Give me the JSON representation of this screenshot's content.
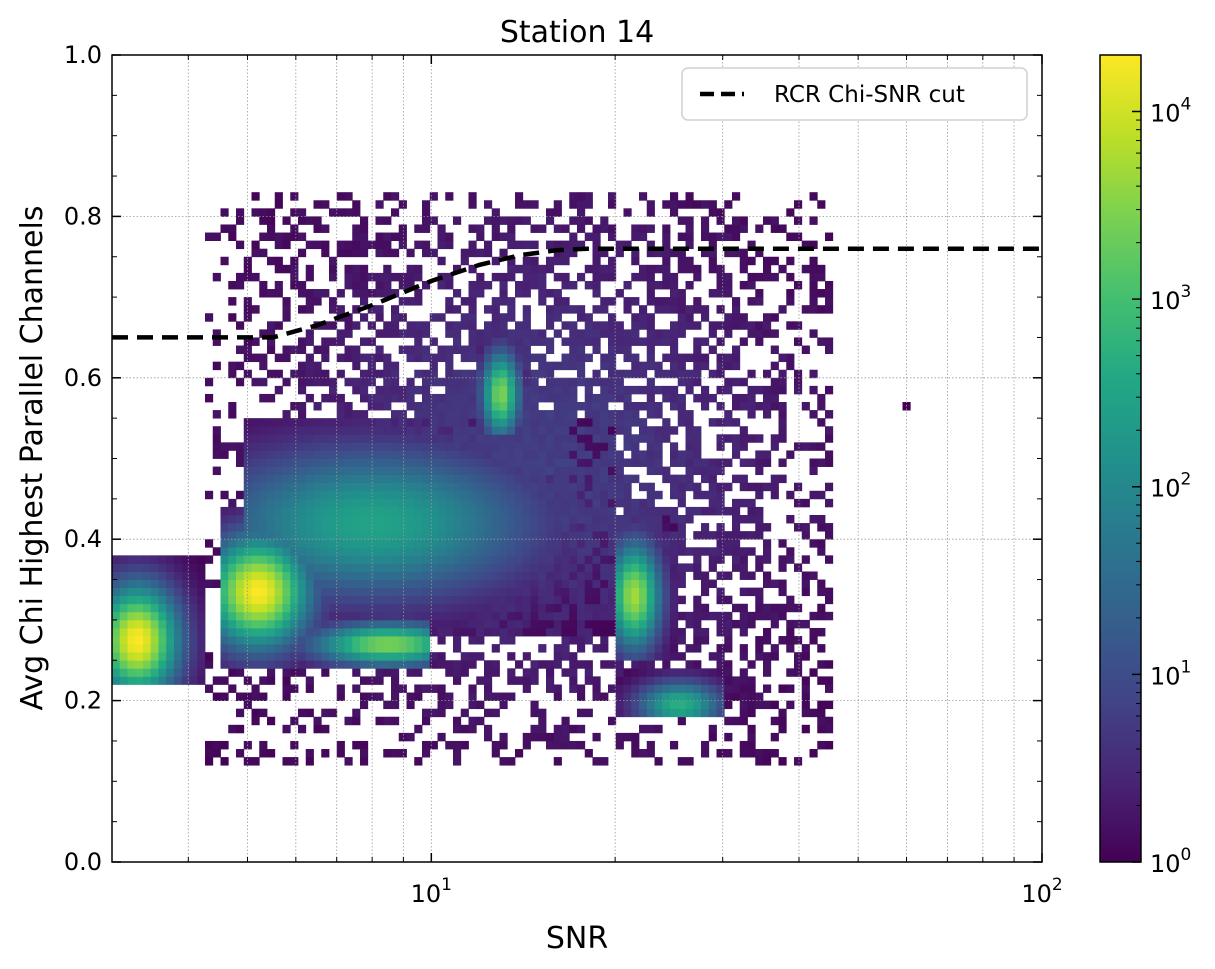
{
  "chart_data": {
    "type": "heatmap",
    "title": "Station 14",
    "xlabel": "SNR",
    "ylabel": "Avg Chi Highest Parallel Channels",
    "xscale": "log",
    "xlim": [
      3,
      100
    ],
    "ylim": [
      0,
      1
    ],
    "x_ticks": [
      {
        "value": 10,
        "base": "10",
        "exp": "1"
      },
      {
        "value": 100,
        "base": "10",
        "exp": "2"
      }
    ],
    "y_ticks": [
      {
        "value": 0.0,
        "label": "0.0"
      },
      {
        "value": 0.2,
        "label": "0.2"
      },
      {
        "value": 0.4,
        "label": "0.4"
      },
      {
        "value": 0.6,
        "label": "0.6"
      },
      {
        "value": 0.8,
        "label": "0.8"
      },
      {
        "value": 1.0,
        "label": "1.0"
      }
    ],
    "grid": true,
    "colormap": "viridis",
    "colorbar": {
      "scale": "log",
      "range": [
        1,
        20000
      ],
      "ticks": [
        {
          "value": 1,
          "base": "10",
          "exp": "0"
        },
        {
          "value": 10,
          "base": "10",
          "exp": "1"
        },
        {
          "value": 100,
          "base": "10",
          "exp": "2"
        },
        {
          "value": 1000,
          "base": "10",
          "exp": "3"
        },
        {
          "value": 10000,
          "base": "10",
          "exp": "4"
        }
      ]
    },
    "density_regions": [
      {
        "snr": [
          3.0,
          4.2
        ],
        "chi": [
          0.22,
          0.38
        ],
        "peak_count": 20000,
        "center": [
          3.3,
          0.275
        ]
      },
      {
        "snr": [
          4.5,
          7.0
        ],
        "chi": [
          0.24,
          0.44
        ],
        "peak_count": 20000,
        "center": [
          5.2,
          0.335
        ]
      },
      {
        "snr": [
          5.5,
          10.0
        ],
        "chi": [
          0.24,
          0.31
        ],
        "peak_count": 3000,
        "center": [
          8.5,
          0.27
        ]
      },
      {
        "snr": [
          5.0,
          20.0
        ],
        "chi": [
          0.28,
          0.55
        ],
        "peak_count": 300,
        "center": [
          8.0,
          0.42
        ]
      },
      {
        "snr": [
          12.0,
          14.5
        ],
        "chi": [
          0.53,
          0.66
        ],
        "peak_count": 3000,
        "center": [
          13.0,
          0.58
        ]
      },
      {
        "snr": [
          20.0,
          25.0
        ],
        "chi": [
          0.25,
          0.43
        ],
        "peak_count": 5000,
        "center": [
          21.5,
          0.33
        ]
      },
      {
        "snr": [
          20.0,
          30.0
        ],
        "chi": [
          0.18,
          0.24
        ],
        "peak_count": 500,
        "center": [
          25.5,
          0.195
        ]
      },
      {
        "snr": [
          4.3,
          45.0
        ],
        "chi": [
          0.12,
          0.83
        ],
        "peak_count": 5,
        "center": [
          15.0,
          0.5
        ]
      },
      {
        "snr": [
          60.0,
          60.0
        ],
        "chi": [
          0.565,
          0.565
        ],
        "peak_count": 1,
        "center": [
          60.0,
          0.565
        ]
      }
    ],
    "series": [
      {
        "name": "RCR Chi-SNR cut",
        "type": "line",
        "style": "dashed",
        "color": "#000000",
        "x": [
          3.0,
          5.5,
          6.5,
          8.0,
          10.0,
          12.0,
          14.0,
          16.0,
          18.0,
          25.0,
          50.0,
          100.0
        ],
        "y": [
          0.65,
          0.65,
          0.665,
          0.69,
          0.72,
          0.74,
          0.752,
          0.758,
          0.76,
          0.76,
          0.76,
          0.76
        ]
      }
    ],
    "legend_position": "top-right"
  }
}
